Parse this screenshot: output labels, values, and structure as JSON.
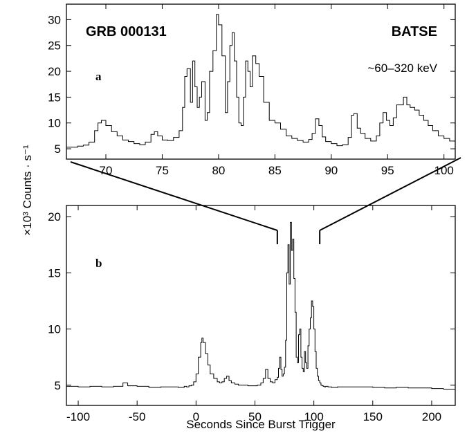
{
  "chart_data": [
    {
      "panel": "a",
      "type": "line",
      "title": "GRB 000131",
      "instrument": "BATSE",
      "energy_band": "~60–320 keV",
      "xlim": [
        66.5,
        101
      ],
      "ylim": [
        3,
        33
      ],
      "xticks": [
        70,
        75,
        80,
        85,
        90,
        95,
        100
      ],
      "yticks": [
        5,
        10,
        15,
        20,
        25,
        30
      ],
      "grid": false,
      "x": [
        66.5,
        67,
        67.5,
        68,
        68.5,
        69,
        69.3,
        69.6,
        70,
        70.5,
        71,
        71.5,
        72,
        72.5,
        73,
        73.5,
        74,
        74.3,
        74.6,
        75,
        75.5,
        76,
        76.5,
        76.8,
        77,
        77.2,
        77.5,
        77.7,
        77.9,
        78.1,
        78.3,
        78.5,
        78.8,
        79,
        79.2,
        79.5,
        79.8,
        80,
        80.3,
        80.6,
        80.8,
        81,
        81.2,
        81.4,
        81.6,
        81.8,
        82,
        82.2,
        82.4,
        82.6,
        82.8,
        83,
        83.3,
        83.6,
        84,
        84.5,
        85,
        85.5,
        86,
        86.5,
        87,
        87.5,
        88,
        88.3,
        88.6,
        88.9,
        89.2,
        89.5,
        90,
        90.5,
        91,
        91.5,
        91.8,
        92,
        92.3,
        92.6,
        93,
        93.5,
        94,
        94.3,
        94.6,
        94.9,
        95.2,
        95.5,
        95.8,
        96.1,
        96.4,
        96.7,
        97,
        97.4,
        97.8,
        98.2,
        98.6,
        99,
        99.5,
        100,
        100.5,
        101
      ],
      "values": [
        5.3,
        5.3,
        5.5,
        5.7,
        6.3,
        8.5,
        10.0,
        10.5,
        9.5,
        8.3,
        7.5,
        6.7,
        6.4,
        6.0,
        5.8,
        6.3,
        7.8,
        8.3,
        7.5,
        6.7,
        6.6,
        7.2,
        8.5,
        13.0,
        19.0,
        20.5,
        14.0,
        22.0,
        17.0,
        13.0,
        15.0,
        18.0,
        10.5,
        12.0,
        20.0,
        24.0,
        31.0,
        29.0,
        23.0,
        12.0,
        18.0,
        25.0,
        27.5,
        22.0,
        15.0,
        10.0,
        9.5,
        15.0,
        22.0,
        20.0,
        17.0,
        23.0,
        21.5,
        19.0,
        14.0,
        10.5,
        10.0,
        8.8,
        7.5,
        7.0,
        6.6,
        6.3,
        6.8,
        8.0,
        10.8,
        9.5,
        7.3,
        6.4,
        6.0,
        5.6,
        5.8,
        7.2,
        11.5,
        11.8,
        9.0,
        8.0,
        7.0,
        6.5,
        7.5,
        10.0,
        12.0,
        10.5,
        9.5,
        11.0,
        13.5,
        13.5,
        15.0,
        13.5,
        13.0,
        12.5,
        11.5,
        10.5,
        9.5,
        8.5,
        7.5,
        7.0,
        6.5,
        6.3
      ]
    },
    {
      "panel": "b",
      "type": "line",
      "xlabel": "Seconds Since Burst Trigger",
      "ylabel": "×10³ Counts · s⁻¹",
      "xlim": [
        -110,
        220
      ],
      "ylim": [
        3.2,
        21
      ],
      "xticks": [
        -100,
        -50,
        0,
        50,
        100,
        150,
        200
      ],
      "yticks": [
        5,
        10,
        15,
        20
      ],
      "grid": false,
      "x": [
        -110,
        -100,
        -90,
        -80,
        -70,
        -65,
        -62,
        -58,
        -50,
        -40,
        -30,
        -20,
        -15,
        -10,
        -8,
        -6,
        -4,
        -2,
        0,
        2,
        4,
        5,
        6,
        8,
        10,
        12,
        15,
        18,
        20,
        22,
        24,
        26,
        28,
        30,
        33,
        36,
        40,
        44,
        48,
        52,
        55,
        57,
        59,
        61,
        63,
        65,
        67,
        69,
        70,
        71,
        72,
        73,
        74,
        75,
        76,
        77,
        78,
        79,
        80,
        81,
        82,
        83,
        84,
        85,
        86,
        87,
        88,
        89,
        90,
        91,
        92,
        93,
        94,
        95,
        96,
        97,
        98,
        99,
        100,
        101,
        102,
        103,
        104,
        105,
        106,
        107,
        108,
        109,
        110,
        112,
        115,
        120,
        130,
        140,
        150,
        160,
        170,
        180,
        190,
        200,
        210,
        220
      ],
      "values": [
        4.9,
        4.85,
        4.9,
        4.85,
        4.9,
        4.9,
        5.2,
        4.95,
        4.9,
        4.8,
        4.85,
        4.85,
        4.8,
        4.9,
        4.85,
        4.95,
        5.0,
        5.3,
        6.0,
        7.5,
        8.8,
        9.2,
        8.8,
        7.8,
        6.8,
        6.0,
        5.6,
        5.3,
        5.2,
        5.3,
        5.6,
        5.8,
        5.4,
        5.2,
        5.1,
        5.0,
        5.0,
        4.95,
        4.95,
        5.0,
        5.2,
        5.6,
        6.4,
        5.6,
        5.3,
        5.2,
        5.5,
        5.7,
        6.5,
        7.5,
        6.4,
        5.8,
        6.0,
        6.6,
        9.0,
        15.0,
        17.5,
        14.0,
        19.5,
        17.0,
        18.0,
        14.5,
        11.5,
        7.5,
        7.0,
        9.5,
        10.0,
        7.5,
        6.5,
        6.2,
        8.0,
        7.0,
        6.5,
        8.5,
        10.0,
        11.0,
        12.5,
        12.0,
        10.0,
        8.0,
        6.5,
        5.8,
        5.4,
        5.2,
        5.0,
        4.95,
        4.9,
        4.85,
        4.9,
        4.85,
        4.8,
        4.85,
        4.85,
        4.85,
        4.8,
        4.75,
        4.8,
        4.75,
        4.75,
        4.7,
        4.65,
        4.7
      ]
    }
  ],
  "zoom_range": [
    69,
    105
  ]
}
